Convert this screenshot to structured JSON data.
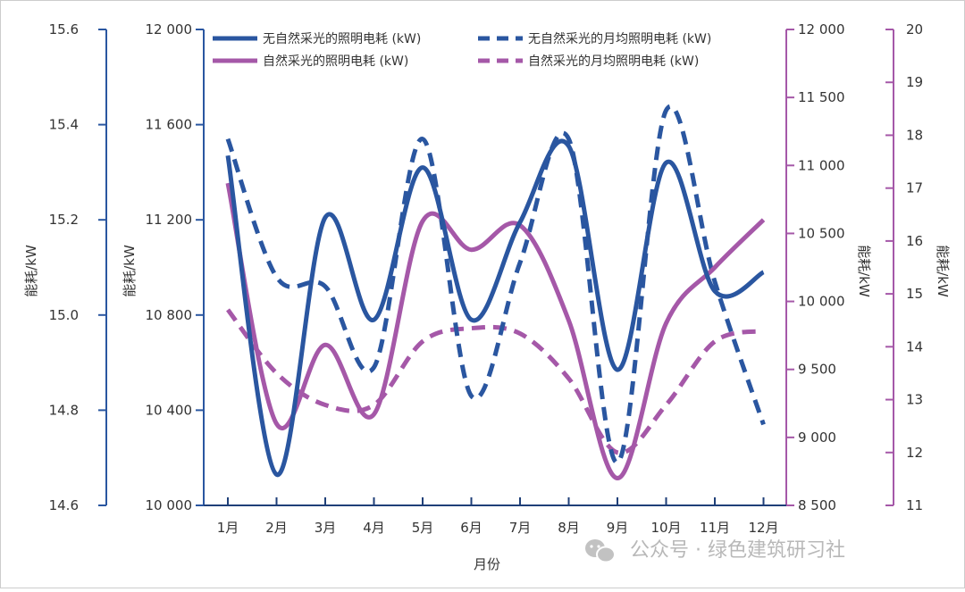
{
  "chart_data": {
    "type": "line",
    "xlabel": "月份",
    "categories": [
      "1月",
      "2月",
      "3月",
      "4月",
      "5月",
      "6月",
      "7月",
      "8月",
      "9月",
      "10月",
      "11月",
      "12月"
    ],
    "axes": {
      "y_outer_left": {
        "label": "能耗/kW",
        "range": [
          14.6,
          15.6
        ],
        "ticks": [
          "14.6",
          "14.8",
          "15.0",
          "15.2",
          "15.4",
          "15.6"
        ],
        "color": "#2a56a0"
      },
      "y_inner_left": {
        "label": "能耗/kW",
        "range": [
          10000,
          12000
        ],
        "ticks": [
          "10 000",
          "10 400",
          "10 800",
          "11 200",
          "11 600",
          "12 000"
        ],
        "color": "#2a56a0"
      },
      "y_inner_right": {
        "label": "能耗/kW",
        "range": [
          8500,
          12000
        ],
        "ticks": [
          "8 500",
          "9 000",
          "9 500",
          "10 000",
          "10 500",
          "11 000",
          "11 500",
          "12 000"
        ],
        "color": "#a558a8"
      },
      "y_outer_right": {
        "label": "能耗/kW",
        "range": [
          11,
          20
        ],
        "ticks": [
          "11",
          "12",
          "13",
          "14",
          "15",
          "16",
          "17",
          "18",
          "19",
          "20"
        ],
        "color": "#a558a8"
      }
    },
    "series": [
      {
        "name": "无自然采光的照明电耗 (kW)",
        "axis": "y_inner_left",
        "style": "solid",
        "color": "#2a56a0",
        "values": [
          11470,
          10130,
          11210,
          10780,
          11420,
          10780,
          11190,
          11510,
          10570,
          11440,
          10900,
          10980
        ]
      },
      {
        "name": "无自然采光的月均照明电耗 (kW)",
        "axis": "y_outer_left",
        "style": "dashed",
        "color": "#2a56a0",
        "values": [
          15.37,
          15.08,
          15.06,
          14.89,
          15.37,
          14.83,
          15.11,
          15.37,
          14.69,
          15.43,
          15.07,
          14.77
        ]
      },
      {
        "name": "自然采光的照明电耗 (kW)",
        "axis": "y_inner_right",
        "style": "solid",
        "color": "#a558a8",
        "values": [
          10870,
          9100,
          9680,
          9170,
          10590,
          10380,
          10560,
          9860,
          8700,
          9840,
          10250,
          10600
        ]
      },
      {
        "name": "自然采光的月均照明电耗 (kW)",
        "axis": "y_outer_right",
        "style": "dashed",
        "color": "#a558a8",
        "values": [
          14.7,
          13.5,
          12.9,
          12.9,
          14.1,
          14.35,
          14.25,
          13.4,
          12.0,
          12.9,
          14.1,
          14.3
        ]
      }
    ],
    "legend_position": "top"
  },
  "watermark": {
    "text": "公众号 · 绿色建筑研习社",
    "icon": "wechat-icon"
  }
}
